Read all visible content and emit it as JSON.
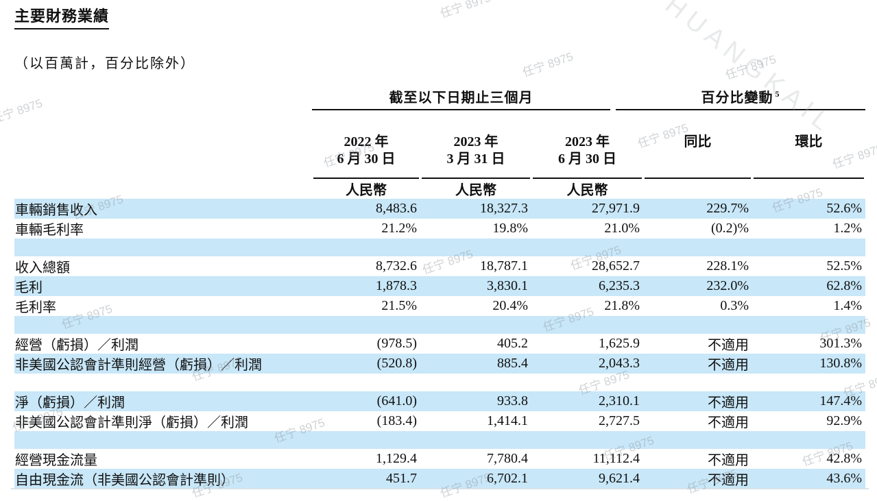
{
  "page": {
    "title": "主要財務業績",
    "subtitle": "（以百萬計，百分比除外）"
  },
  "watermarks": {
    "text": "任宁 8975",
    "latin": "HUANGKAIL"
  },
  "colors": {
    "shaded_row": "#c8e7f8",
    "rule": "#101010",
    "bottom_hairline": "#d8e3ea"
  },
  "table": {
    "col_groups": [
      {
        "label": "截至以下日期止三個月",
        "span": 3
      },
      {
        "label": "百分比變動",
        "superscript": "5",
        "span": 2
      }
    ],
    "columns": [
      {
        "line1": "2022 年",
        "line2": "6 月 30 日",
        "unit": "人民幣"
      },
      {
        "line1": "2023 年",
        "line2": "3 月 31 日",
        "unit": "人民幣"
      },
      {
        "line1": "2023 年",
        "line2": "6 月 30 日",
        "unit": "人民幣"
      },
      {
        "label": "同比"
      },
      {
        "label": "環比"
      }
    ],
    "rows": [
      {
        "label": "車輛銷售收入",
        "values": [
          "8,483.6",
          "18,327.3",
          "27,971.9",
          "229.7%",
          "52.6%"
        ],
        "shaded": true
      },
      {
        "label": "車輛毛利率",
        "values": [
          "21.2%",
          "19.8%",
          "21.0%",
          "(0.2)%",
          "1.2%"
        ],
        "shaded": false
      },
      {
        "spacer": true,
        "shaded": true
      },
      {
        "label": "收入總額",
        "values": [
          "8,732.6",
          "18,787.1",
          "28,652.7",
          "228.1%",
          "52.5%"
        ],
        "shaded": false
      },
      {
        "label": "毛利",
        "values": [
          "1,878.3",
          "3,830.1",
          "6,235.3",
          "232.0%",
          "62.8%"
        ],
        "shaded": true
      },
      {
        "label": "毛利率",
        "values": [
          "21.5%",
          "20.4%",
          "21.8%",
          "0.3%",
          "1.4%"
        ],
        "shaded": false
      },
      {
        "spacer": true,
        "shaded": true
      },
      {
        "label": "經營（虧損）／利潤",
        "values": [
          "(978.5)",
          "405.2",
          "1,625.9",
          "不適用",
          "301.3%"
        ],
        "shaded": false
      },
      {
        "label": "非美國公認會計準則經營（虧損）／利潤",
        "values": [
          "(520.8)",
          "885.4",
          "2,043.3",
          "不適用",
          "130.8%"
        ],
        "shaded": true
      },
      {
        "spacer": true,
        "shaded": false
      },
      {
        "label": "淨（虧損）／利潤",
        "values": [
          "(641.0)",
          "933.8",
          "2,310.1",
          "不適用",
          "147.4%"
        ],
        "shaded": true
      },
      {
        "label": "非美國公認會計準則淨（虧損）／利潤",
        "values": [
          "(183.4)",
          "1,414.1",
          "2,727.5",
          "不適用",
          "92.9%"
        ],
        "shaded": false
      },
      {
        "spacer": true,
        "shaded": true
      },
      {
        "label": "經營現金流量",
        "values": [
          "1,129.4",
          "7,780.4",
          "11,112.4",
          "不適用",
          "42.8%"
        ],
        "shaded": false
      },
      {
        "label": "自由現金流（非美國公認會計準則）",
        "values": [
          "451.7",
          "6,702.1",
          "9,621.4",
          "不適用",
          "43.6%"
        ],
        "shaded": true
      }
    ]
  }
}
